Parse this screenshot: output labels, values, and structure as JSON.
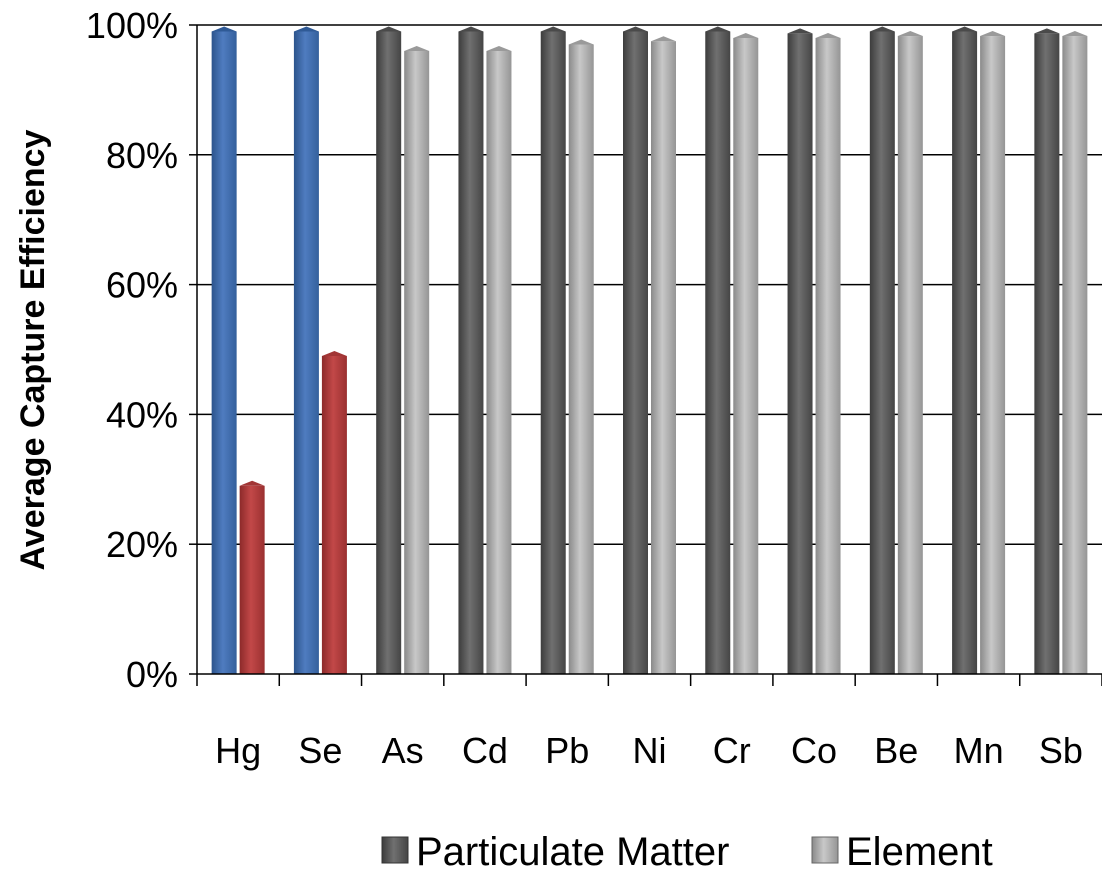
{
  "chart_data": {
    "type": "bar",
    "ylabel": "Average Capture Efficiency",
    "xlabel": "",
    "ylim": [
      0,
      1
    ],
    "yticks": [
      "0%",
      "20%",
      "40%",
      "60%",
      "80%",
      "100%"
    ],
    "categories": [
      "Hg",
      "Se",
      "As",
      "Cd",
      "Pb",
      "Ni",
      "Cr",
      "Co",
      "Be",
      "Mn",
      "Sb"
    ],
    "series": [
      {
        "name": "Particulate Matter",
        "values": [
          0.99,
          0.99,
          0.99,
          0.99,
          0.99,
          0.99,
          0.99,
          0.987,
          0.99,
          0.99,
          0.987
        ],
        "color": "#5a5a5a",
        "highlight_color": "#3f6aa8",
        "highlight_indices": [
          0,
          1
        ]
      },
      {
        "name": "Element",
        "values": [
          0.29,
          0.49,
          0.96,
          0.96,
          0.97,
          0.975,
          0.98,
          0.98,
          0.983,
          0.983,
          0.983
        ],
        "color": "#a9a9a9",
        "highlight_color": "#b03a3a",
        "highlight_indices": [
          0,
          1
        ]
      }
    ],
    "grid": true,
    "legend_position": "bottom"
  }
}
